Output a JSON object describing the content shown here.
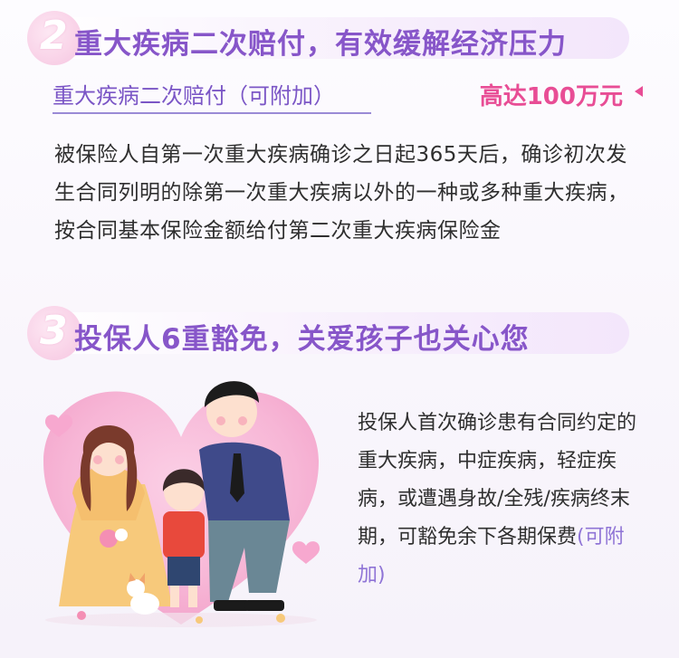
{
  "section2": {
    "number": "2",
    "title": "重大疾病二次赔付，有效缓解经济压力",
    "sub_label": "重大疾病二次赔付（可附加）",
    "amount": "高达100万元",
    "description": "被保险人自第一次重大疾病确诊之日起365天后，确诊初次发生合同列明的除第一次重大疾病以外的一种或多种重大疾病，按合同基本保险金额给付第二次重大疾病保险金"
  },
  "section3": {
    "number": "3",
    "title": "投保人6重豁免，关爱孩子也关心您",
    "description": "投保人首次确诊患有合同约定的重大疾病，中症疾病，轻症疾病，或遭遇身故/全残/疾病终末期，可豁免余下各期保费",
    "tag": "(可附加)"
  },
  "colors": {
    "title": "#8756c9",
    "accent_pink": "#e84d95",
    "underline": "#9a8ad6",
    "tag": "#8f74d6"
  }
}
